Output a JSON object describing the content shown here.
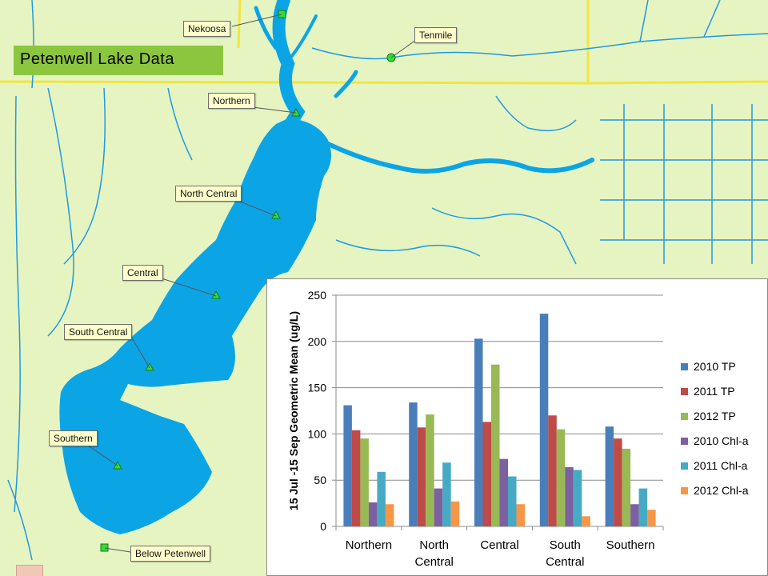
{
  "title": "Petenwell Lake Data",
  "sites": [
    {
      "label": "Nekoosa"
    },
    {
      "label": "Tenmile"
    },
    {
      "label": "Northern"
    },
    {
      "label": "North Central"
    },
    {
      "label": "Central"
    },
    {
      "label": "South Central"
    },
    {
      "label": "Southern"
    },
    {
      "label": "Below Petenwell"
    }
  ],
  "colors": {
    "map_bg": "#e6f4c2",
    "water": "#0ba5e6",
    "road": "#f0e63c",
    "title_bg": "#8cc63f",
    "callout_bg": "#ffffcc"
  },
  "chart_data": {
    "type": "bar",
    "categories": [
      "Northern",
      "North Central",
      "Central",
      "South Central",
      "Southern"
    ],
    "category_lines": [
      [
        "Northern"
      ],
      [
        "North",
        "Central"
      ],
      [
        "Central"
      ],
      [
        "South",
        "Central"
      ],
      [
        "Southern"
      ]
    ],
    "ylabel": "15 Jul -15 Sep Geometric Mean (ug/L)",
    "ylim": [
      0,
      250
    ],
    "yticks": [
      0,
      50,
      100,
      150,
      200,
      250
    ],
    "grid": true,
    "legend_position": "right",
    "series": [
      {
        "name": "2010 TP",
        "color": "#4a7ebb",
        "values": [
          131,
          134,
          203,
          230,
          108
        ]
      },
      {
        "name": "2011 TP",
        "color": "#be4b48",
        "values": [
          104,
          107,
          113,
          120,
          95
        ]
      },
      {
        "name": "2012 TP",
        "color": "#98b954",
        "values": [
          95,
          121,
          175,
          105,
          84
        ]
      },
      {
        "name": "2010 Chl-a",
        "color": "#7d60a0",
        "values": [
          26,
          41,
          73,
          64,
          24
        ]
      },
      {
        "name": "2011 Chl-a",
        "color": "#46aac5",
        "values": [
          59,
          69,
          54,
          61,
          41
        ]
      },
      {
        "name": "2012 Chl-a",
        "color": "#f79646",
        "values": [
          24,
          27,
          24,
          11,
          18
        ]
      }
    ]
  }
}
